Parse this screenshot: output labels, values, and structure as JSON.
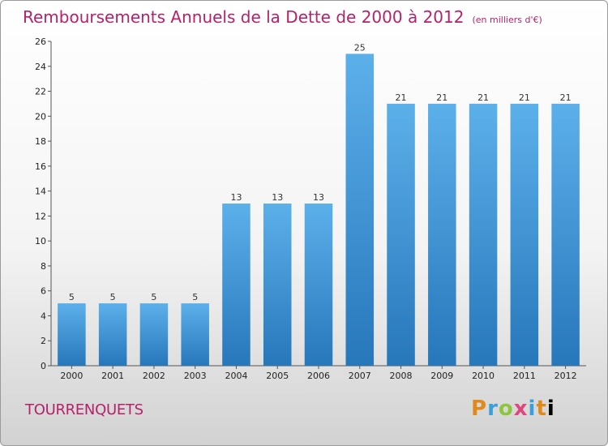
{
  "title": "Remboursements Annuels de la Dette de 2000 à 2012",
  "unit": "(en milliers d'€)",
  "commune": "TOURRENQUETS",
  "logo": [
    "P",
    "r",
    "o",
    "x",
    "i",
    "t",
    "i"
  ],
  "colors": {
    "title": "#b5226a",
    "bar_top": "#5aaee8",
    "bar_bottom": "#2a7dc0"
  },
  "chart_data": {
    "type": "bar",
    "title": "Remboursements Annuels de la Dette de 2000 à 2012",
    "xlabel": "",
    "ylabel": "",
    "ylim": [
      0,
      26
    ],
    "yticks": [
      0,
      2,
      4,
      6,
      8,
      10,
      12,
      14,
      16,
      18,
      20,
      22,
      24,
      26
    ],
    "grid": false,
    "categories": [
      "2000",
      "2001",
      "2002",
      "2003",
      "2004",
      "2005",
      "2006",
      "2007",
      "2008",
      "2009",
      "2010",
      "2011",
      "2012"
    ],
    "values": [
      5,
      5,
      5,
      5,
      13,
      13,
      13,
      25,
      21,
      21,
      21,
      21,
      21
    ]
  }
}
